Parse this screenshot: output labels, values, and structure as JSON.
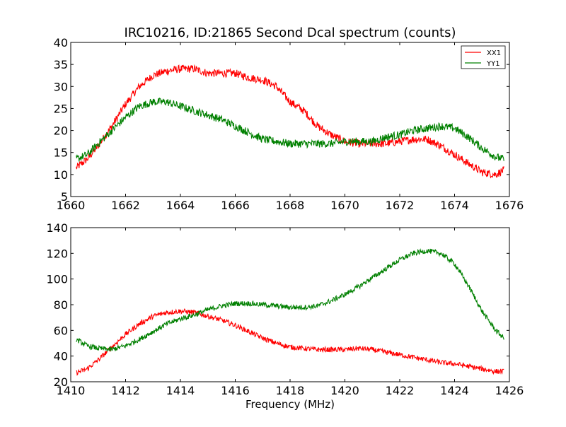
{
  "chart_data": [
    {
      "type": "line",
      "title": "IRC10216, ID:21865 Second Dcal spectrum (counts)",
      "xlabel": "",
      "ylabel": "",
      "xlim": [
        1660,
        1676
      ],
      "ylim": [
        5,
        40
      ],
      "xticks": [
        1660,
        1662,
        1664,
        1666,
        1668,
        1670,
        1672,
        1674,
        1676
      ],
      "yticks": [
        5,
        10,
        15,
        20,
        25,
        30,
        35,
        40
      ],
      "grid": false,
      "legend_position": "top-right",
      "x_start": 1660.2,
      "x_end": 1675.8,
      "noise_amplitude": 0.9,
      "series": [
        {
          "name": "XX1",
          "color": "#ff0000",
          "x": [
            1660.2,
            1660.6,
            1661.0,
            1661.5,
            1662.0,
            1662.5,
            1663.0,
            1663.5,
            1664.0,
            1664.5,
            1665.0,
            1665.5,
            1666.0,
            1666.5,
            1667.0,
            1667.5,
            1668.0,
            1668.5,
            1669.0,
            1669.5,
            1670.0,
            1670.5,
            1671.0,
            1671.5,
            1672.0,
            1672.5,
            1673.0,
            1673.5,
            1674.0,
            1674.5,
            1675.0,
            1675.5,
            1675.8
          ],
          "y": [
            11.5,
            13.5,
            16.5,
            21.0,
            26.0,
            30.0,
            32.5,
            33.5,
            34.0,
            34.0,
            33.0,
            33.0,
            33.0,
            32.0,
            31.5,
            30.0,
            26.5,
            24.5,
            21.0,
            19.0,
            17.5,
            17.0,
            17.0,
            17.0,
            17.5,
            18.0,
            18.0,
            16.5,
            14.5,
            12.5,
            10.5,
            10.0,
            11.0
          ]
        },
        {
          "name": "YY1",
          "color": "#008000",
          "x": [
            1660.2,
            1660.6,
            1661.0,
            1661.5,
            1662.0,
            1662.5,
            1663.0,
            1663.5,
            1664.0,
            1664.5,
            1665.0,
            1665.5,
            1666.0,
            1666.5,
            1667.0,
            1667.5,
            1668.0,
            1668.5,
            1669.0,
            1669.5,
            1670.0,
            1670.5,
            1671.0,
            1671.5,
            1672.0,
            1672.5,
            1673.0,
            1673.5,
            1674.0,
            1674.5,
            1675.0,
            1675.5,
            1675.8
          ],
          "y": [
            13.5,
            14.5,
            17.0,
            20.0,
            23.0,
            25.5,
            26.5,
            26.5,
            25.5,
            24.5,
            23.5,
            22.5,
            21.0,
            19.5,
            18.0,
            17.5,
            17.0,
            17.0,
            17.0,
            17.0,
            17.5,
            17.5,
            17.5,
            18.5,
            19.0,
            20.0,
            20.5,
            21.0,
            20.5,
            18.5,
            16.0,
            14.0,
            13.5
          ]
        }
      ]
    },
    {
      "type": "line",
      "title": "",
      "xlabel": "Frequency (MHz)",
      "ylabel": "",
      "xlim": [
        1410,
        1426
      ],
      "ylim": [
        20,
        140
      ],
      "xticks": [
        1410,
        1412,
        1414,
        1416,
        1418,
        1420,
        1422,
        1424,
        1426
      ],
      "yticks": [
        20,
        40,
        60,
        80,
        100,
        120,
        140
      ],
      "grid": false,
      "x_start": 1410.2,
      "x_end": 1425.8,
      "noise_amplitude": 2.0,
      "series": [
        {
          "color": "#ff0000",
          "x": [
            1410.2,
            1410.6,
            1411.0,
            1411.5,
            1412.0,
            1412.5,
            1413.0,
            1413.5,
            1414.0,
            1414.5,
            1415.0,
            1415.5,
            1416.0,
            1416.5,
            1417.0,
            1417.5,
            1418.0,
            1418.5,
            1419.0,
            1419.5,
            1420.0,
            1420.5,
            1421.0,
            1421.5,
            1422.0,
            1422.5,
            1423.0,
            1423.5,
            1424.0,
            1424.5,
            1425.0,
            1425.5,
            1425.8
          ],
          "y": [
            27,
            30,
            37,
            47,
            57,
            65,
            71,
            74,
            75,
            74,
            71,
            68,
            64,
            59,
            54,
            50,
            47,
            46,
            45,
            45,
            45,
            46,
            45,
            43,
            41,
            39,
            37,
            35,
            34,
            32,
            30,
            28,
            28
          ]
        },
        {
          "color": "#008000",
          "x": [
            1410.2,
            1410.6,
            1411.0,
            1411.5,
            1412.0,
            1412.5,
            1413.0,
            1413.5,
            1414.0,
            1414.5,
            1415.0,
            1415.5,
            1416.0,
            1416.5,
            1417.0,
            1417.5,
            1418.0,
            1418.5,
            1419.0,
            1419.5,
            1420.0,
            1420.5,
            1421.0,
            1421.5,
            1422.0,
            1422.5,
            1423.0,
            1423.5,
            1424.0,
            1424.5,
            1425.0,
            1425.5,
            1425.8
          ],
          "y": [
            53,
            48,
            46,
            45,
            48,
            53,
            59,
            65,
            69,
            72,
            76,
            79,
            81,
            81,
            80,
            79,
            78,
            78,
            79,
            83,
            88,
            94,
            101,
            108,
            115,
            120,
            122,
            120,
            112,
            95,
            75,
            60,
            54
          ]
        }
      ]
    }
  ]
}
